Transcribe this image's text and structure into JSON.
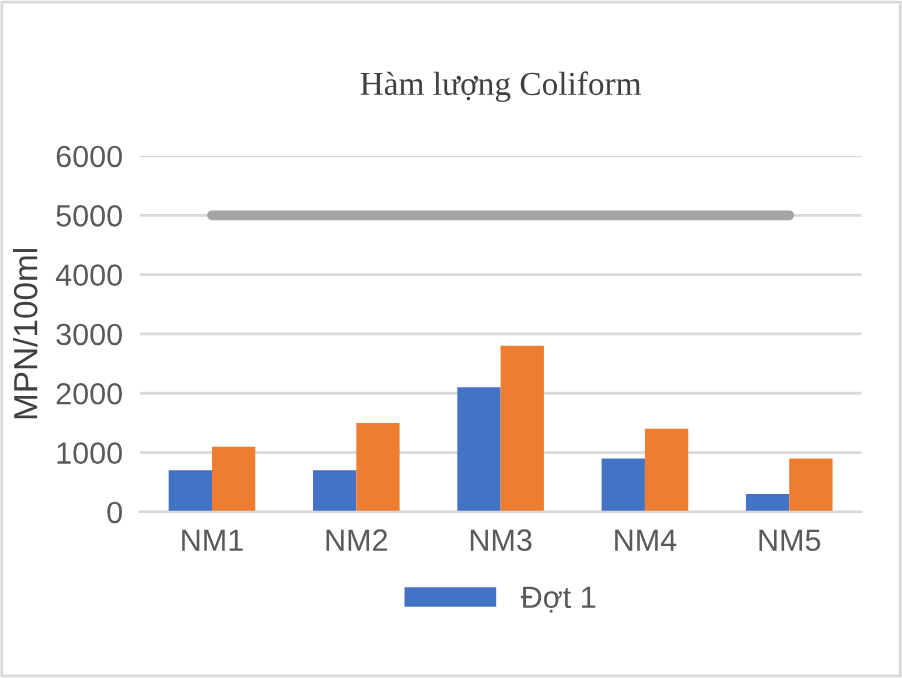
{
  "chart_data": {
    "type": "bar",
    "title": "Hàm lượng Coliform",
    "ylabel": "MPN/100ml",
    "categories": [
      "NM1",
      "NM2",
      "NM3",
      "NM4",
      "NM5"
    ],
    "series": [
      {
        "name": "Đợt 1",
        "color": "#4472c4",
        "values": [
          700,
          700,
          2100,
          900,
          300
        ]
      },
      {
        "color": "#ed7d31",
        "values": [
          1100,
          1500,
          2800,
          1400,
          900
        ]
      },
      {
        "type": "line",
        "color": "#a5a5a5",
        "values": [
          5000,
          5000,
          5000,
          5000,
          5000
        ]
      }
    ],
    "ylim": [
      0,
      6000
    ],
    "yticks": [
      0,
      1000,
      2000,
      3000,
      4000,
      5000,
      6000
    ],
    "grid": "y",
    "legend": "bottom"
  }
}
